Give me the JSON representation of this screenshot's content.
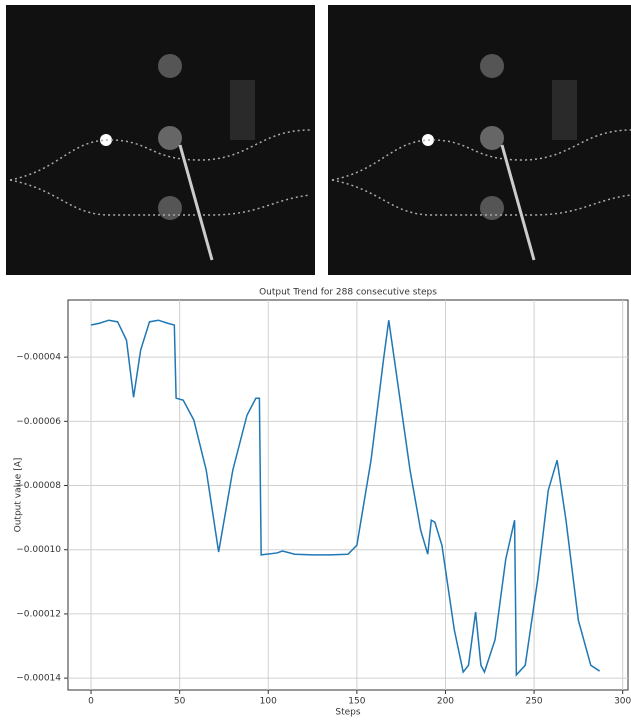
{
  "chart_data": {
    "type": "line",
    "title": "Output Trend for 288 consecutive steps",
    "x_label": "Steps",
    "y_label": "Output value [A]",
    "xlim": [
      -13,
      303
    ],
    "ylim": [
      -0.0001437,
      -2.22e-05
    ],
    "xticks": [
      0,
      50,
      100,
      150,
      200,
      250,
      300
    ],
    "yticks": [
      {
        "value": -4e-05,
        "label": "−0.00004"
      },
      {
        "value": -6e-05,
        "label": "−0.00006"
      },
      {
        "value": -8e-05,
        "label": "−0.00008"
      },
      {
        "value": -0.0001,
        "label": "−0.00010"
      },
      {
        "value": -0.00012,
        "label": "−0.00012"
      },
      {
        "value": -0.00014,
        "label": "−0.00014"
      }
    ],
    "grid": true,
    "series": [
      {
        "color": "#1f77b4",
        "x": [
          0,
          5,
          10,
          15,
          20,
          24,
          28,
          33,
          38,
          43,
          47,
          48,
          52,
          58,
          65,
          72,
          80,
          88,
          93,
          95,
          96,
          105,
          108,
          115,
          125,
          135,
          145,
          150,
          158,
          165,
          168,
          172,
          180,
          186,
          190,
          192,
          194,
          198,
          205,
          210,
          213,
          217,
          220,
          222,
          228,
          234,
          239,
          240,
          245,
          252,
          258,
          263,
          268,
          275,
          282,
          287
        ],
        "values": [
          -3e-05,
          -2.94e-05,
          -2.85e-05,
          -2.9e-05,
          -3.47e-05,
          -5.25e-05,
          -3.78e-05,
          -2.9e-05,
          -2.85e-05,
          -2.94e-05,
          -3e-05,
          -5.28e-05,
          -5.34e-05,
          -5.96e-05,
          -7.52e-05,
          -0.0001007,
          -7.52e-05,
          -5.81e-05,
          -5.28e-05,
          -5.28e-05,
          -0.0001016,
          -0.000101,
          -0.0001004,
          -0.0001014,
          -0.0001016,
          -0.0001016,
          -0.0001014,
          -9.86e-05,
          -7.21e-05,
          -4.09e-05,
          -2.85e-05,
          -4.4e-05,
          -7.52e-05,
          -9.39e-05,
          -0.0001014,
          -9.08e-05,
          -9.14e-05,
          -9.86e-05,
          -0.000125,
          -0.0001381,
          -0.000136,
          -0.0001194,
          -0.000136,
          -0.0001381,
          -0.000128,
          -0.000103,
          -9.08e-05,
          -0.000139,
          -0.000136,
          -0.0001095,
          -8.15e-05,
          -7.21e-05,
          -9.08e-05,
          -0.000122,
          -0.000136,
          -0.0001378
        ]
      }
    ]
  }
}
